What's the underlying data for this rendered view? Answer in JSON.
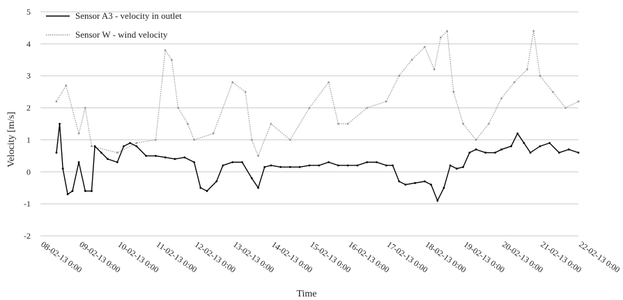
{
  "chart_data": {
    "type": "line",
    "xlabel": "Time",
    "ylabel": "Velocity [m/s]",
    "ylim": [
      -2,
      5
    ],
    "yticks": [
      -2,
      -1,
      0,
      1,
      2,
      3,
      4,
      5
    ],
    "categories": [
      "08-02-13 0:00",
      "09-02-13 0:00",
      "10-02-13 0:00",
      "11-02-13 0:00",
      "12-02-13 0:00",
      "13-02-13 0:00",
      "14-02-13 0:00",
      "15-02-13 0:00",
      "16-02-13 0:00",
      "17-02-13 0:00",
      "18-02-13 0:00",
      "19-02-13 0:00",
      "20-02-13 0:00",
      "21-02-13 0:00",
      "22-02-13 0:00"
    ],
    "grid": "horizontal",
    "legend_position": "top-left",
    "series": [
      {
        "name": "Sensor A3 - velocity in outlet",
        "color": "#000000",
        "x": [
          "08-02-13 10:00",
          "08-02-13 12:00",
          "08-02-13 14:00",
          "08-02-13 17:00",
          "08-02-13 20:00",
          "09-02-13 0:00",
          "09-02-13 4:00",
          "09-02-13 8:00",
          "09-02-13 10:00",
          "09-02-13 14:00",
          "09-02-13 18:00",
          "10-02-13 0:00",
          "10-02-13 4:00",
          "10-02-13 8:00",
          "10-02-13 12:00",
          "10-02-13 18:00",
          "11-02-13 0:00",
          "11-02-13 6:00",
          "11-02-13 12:00",
          "11-02-13 18:00",
          "12-02-13 0:00",
          "12-02-13 4:00",
          "12-02-13 8:00",
          "12-02-13 14:00",
          "12-02-13 18:00",
          "13-02-13 0:00",
          "13-02-13 6:00",
          "13-02-13 12:00",
          "13-02-13 16:00",
          "13-02-13 20:00",
          "14-02-13 0:00",
          "14-02-13 6:00",
          "14-02-13 12:00",
          "14-02-13 18:00",
          "15-02-13 0:00",
          "15-02-13 6:00",
          "15-02-13 12:00",
          "15-02-13 18:00",
          "16-02-13 0:00",
          "16-02-13 6:00",
          "16-02-13 12:00",
          "16-02-13 18:00",
          "17-02-13 0:00",
          "17-02-13 4:00",
          "17-02-13 8:00",
          "17-02-13 12:00",
          "17-02-13 18:00",
          "18-02-13 0:00",
          "18-02-13 4:00",
          "18-02-13 8:00",
          "18-02-13 12:00",
          "18-02-13 16:00",
          "18-02-13 20:00",
          "19-02-13 0:00",
          "19-02-13 4:00",
          "19-02-13 8:00",
          "19-02-13 14:00",
          "19-02-13 20:00",
          "20-02-13 0:00",
          "20-02-13 6:00",
          "20-02-13 10:00",
          "20-02-13 14:00",
          "20-02-13 18:00",
          "21-02-13 0:00",
          "21-02-13 6:00",
          "21-02-13 12:00",
          "21-02-13 18:00",
          "22-02-13 0:00"
        ],
        "y": [
          0.6,
          1.5,
          0.1,
          -0.7,
          -0.6,
          0.3,
          -0.6,
          -0.6,
          0.8,
          0.6,
          0.4,
          0.3,
          0.8,
          0.9,
          0.8,
          0.5,
          0.5,
          0.45,
          0.4,
          0.45,
          0.3,
          -0.5,
          -0.6,
          -0.3,
          0.2,
          0.3,
          0.3,
          -0.2,
          -0.5,
          0.15,
          0.2,
          0.15,
          0.15,
          0.15,
          0.2,
          0.2,
          0.3,
          0.2,
          0.2,
          0.2,
          0.3,
          0.3,
          0.2,
          0.2,
          -0.3,
          -0.4,
          -0.35,
          -0.3,
          -0.4,
          -0.9,
          -0.5,
          0.2,
          0.1,
          0.15,
          0.6,
          0.7,
          0.6,
          0.6,
          0.7,
          0.8,
          1.2,
          0.9,
          0.6,
          0.8,
          0.9,
          0.6,
          0.7,
          0.6
        ]
      },
      {
        "name": "Sensor W - wind velocity",
        "color": "#9a9a9a",
        "x": [
          "08-02-13 10:00",
          "08-02-13 16:00",
          "09-02-13 0:00",
          "09-02-13 4:00",
          "09-02-13 8:00",
          "10-02-13 0:00",
          "10-02-13 12:00",
          "11-02-13 0:00",
          "11-02-13 6:00",
          "11-02-13 10:00",
          "11-02-13 14:00",
          "11-02-13 20:00",
          "12-02-13 0:00",
          "12-02-13 12:00",
          "13-02-13 0:00",
          "13-02-13 8:00",
          "13-02-13 12:00",
          "13-02-13 16:00",
          "14-02-13 0:00",
          "14-02-13 12:00",
          "15-02-13 0:00",
          "15-02-13 12:00",
          "15-02-13 18:00",
          "16-02-13 0:00",
          "16-02-13 12:00",
          "17-02-13 0:00",
          "17-02-13 8:00",
          "17-02-13 16:00",
          "18-02-13 0:00",
          "18-02-13 6:00",
          "18-02-13 10:00",
          "18-02-13 14:00",
          "18-02-13 18:00",
          "19-02-13 0:00",
          "19-02-13 8:00",
          "19-02-13 16:00",
          "20-02-13 0:00",
          "20-02-13 8:00",
          "20-02-13 16:00",
          "20-02-13 20:00",
          "21-02-13 0:00",
          "21-02-13 8:00",
          "21-02-13 16:00",
          "22-02-13 0:00"
        ],
        "y": [
          2.2,
          2.7,
          1.2,
          2.0,
          0.8,
          0.6,
          0.9,
          1.0,
          3.8,
          3.5,
          2.0,
          1.5,
          1.0,
          1.2,
          2.8,
          2.5,
          1.0,
          0.5,
          1.5,
          1.0,
          2.0,
          2.8,
          1.5,
          1.5,
          2.0,
          2.2,
          3.0,
          3.5,
          3.9,
          3.2,
          4.2,
          4.4,
          2.5,
          1.5,
          1.0,
          1.5,
          2.3,
          2.8,
          3.2,
          4.4,
          3.0,
          2.5,
          2.0,
          2.2
        ]
      }
    ]
  }
}
